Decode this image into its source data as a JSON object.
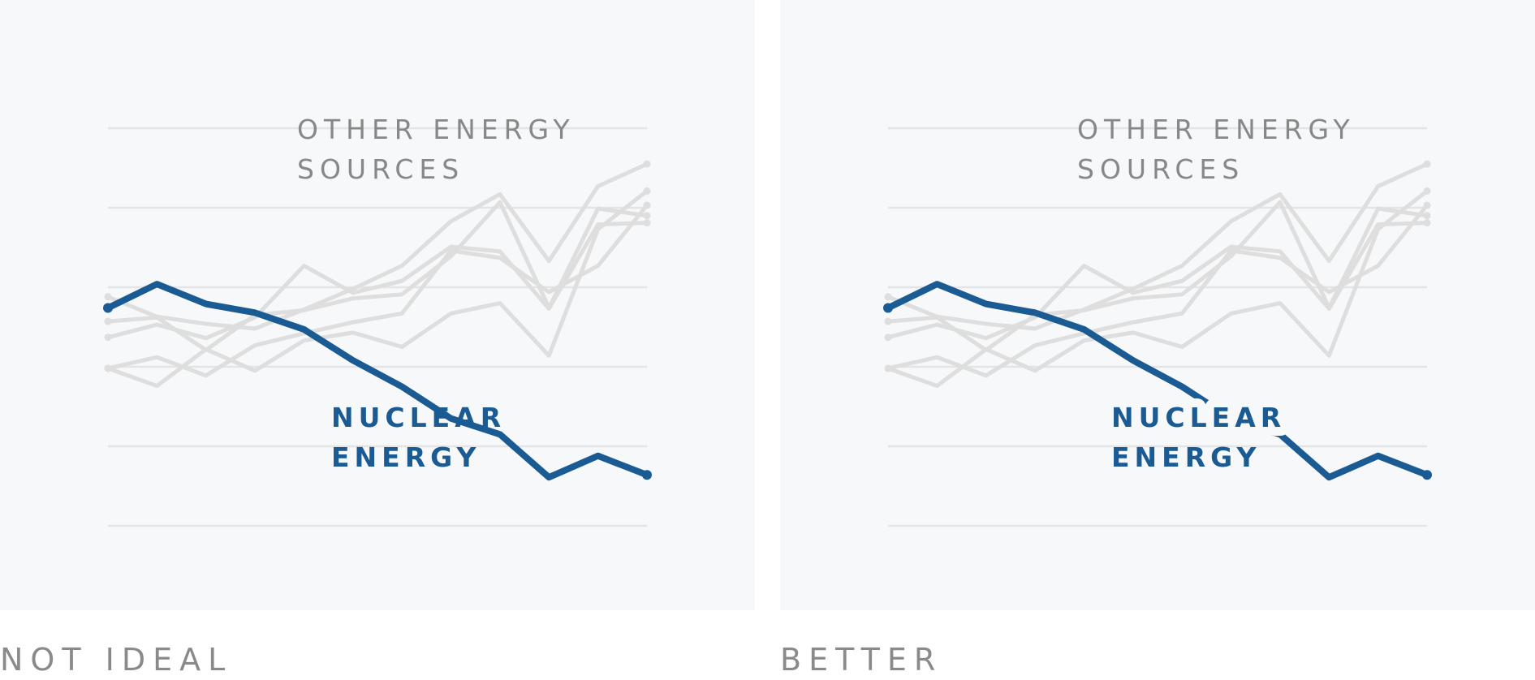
{
  "colors": {
    "highlight": "#1b5b93",
    "other_label": "#888888",
    "caption": "#8a8a8a"
  },
  "chart_data": [
    {
      "type": "line",
      "caption": "NOT IDEAL",
      "label_knockout": false,
      "grid": true,
      "x": [
        0,
        1,
        2,
        3,
        4,
        5,
        6,
        7,
        8,
        9,
        10,
        11
      ],
      "ylim": [
        0,
        5
      ],
      "annotations": {
        "other_label": [
          "OTHER ENERGY",
          "SOURCES"
        ],
        "highlight_label": [
          "NUCLEAR",
          "ENERGY"
        ]
      },
      "series": [
        {
          "group": "other",
          "values": [
            2.88,
            2.63,
            2.54,
            2.48,
            2.72,
            2.98,
            3.27,
            3.83,
            4.17,
            3.33,
            4.27,
            4.55
          ]
        },
        {
          "group": "other",
          "values": [
            2.37,
            2.53,
            2.36,
            2.62,
            3.27,
            2.93,
            3.08,
            3.51,
            3.45,
            2.73,
            3.79,
            3.81
          ]
        },
        {
          "group": "other",
          "values": [
            1.98,
            1.76,
            2.22,
            1.95,
            2.33,
            2.43,
            2.25,
            2.67,
            2.8,
            2.14,
            3.73,
            4.21
          ]
        },
        {
          "group": "other",
          "values": [
            1.98,
            2.12,
            1.89,
            2.27,
            2.42,
            2.56,
            2.67,
            3.46,
            3.37,
            2.94,
            3.27,
            4.03
          ]
        },
        {
          "group": "other",
          "values": [
            2.57,
            2.62,
            2.21,
            2.65,
            2.71,
            2.86,
            2.91,
            3.39,
            4.07,
            2.74,
            3.99,
            3.9
          ]
        },
        {
          "group": "highlight",
          "values": [
            2.74,
            3.04,
            2.79,
            2.68,
            2.47,
            2.08,
            1.75,
            1.35,
            1.15,
            0.61,
            0.88,
            0.64
          ]
        }
      ]
    },
    {
      "type": "line",
      "caption": "BETTER",
      "label_knockout": true,
      "grid": true,
      "x": [
        0,
        1,
        2,
        3,
        4,
        5,
        6,
        7,
        8,
        9,
        10,
        11
      ],
      "ylim": [
        0,
        5
      ],
      "annotations": {
        "other_label": [
          "OTHER ENERGY",
          "SOURCES"
        ],
        "highlight_label": [
          "NUCLEAR",
          "ENERGY"
        ]
      },
      "series": [
        {
          "group": "other",
          "values": [
            2.88,
            2.63,
            2.54,
            2.48,
            2.72,
            2.98,
            3.27,
            3.83,
            4.17,
            3.33,
            4.27,
            4.55
          ]
        },
        {
          "group": "other",
          "values": [
            2.37,
            2.53,
            2.36,
            2.62,
            3.27,
            2.93,
            3.08,
            3.51,
            3.45,
            2.73,
            3.79,
            3.81
          ]
        },
        {
          "group": "other",
          "values": [
            1.98,
            1.76,
            2.22,
            1.95,
            2.33,
            2.43,
            2.25,
            2.67,
            2.8,
            2.14,
            3.73,
            4.21
          ]
        },
        {
          "group": "other",
          "values": [
            1.98,
            2.12,
            1.89,
            2.27,
            2.42,
            2.56,
            2.67,
            3.46,
            3.37,
            2.94,
            3.27,
            4.03
          ]
        },
        {
          "group": "other",
          "values": [
            2.57,
            2.62,
            2.21,
            2.65,
            2.71,
            2.86,
            2.91,
            3.39,
            4.07,
            2.74,
            3.99,
            3.9
          ]
        },
        {
          "group": "highlight",
          "values": [
            2.74,
            3.04,
            2.79,
            2.68,
            2.47,
            2.08,
            1.75,
            1.35,
            1.15,
            0.61,
            0.88,
            0.64
          ]
        }
      ]
    }
  ]
}
